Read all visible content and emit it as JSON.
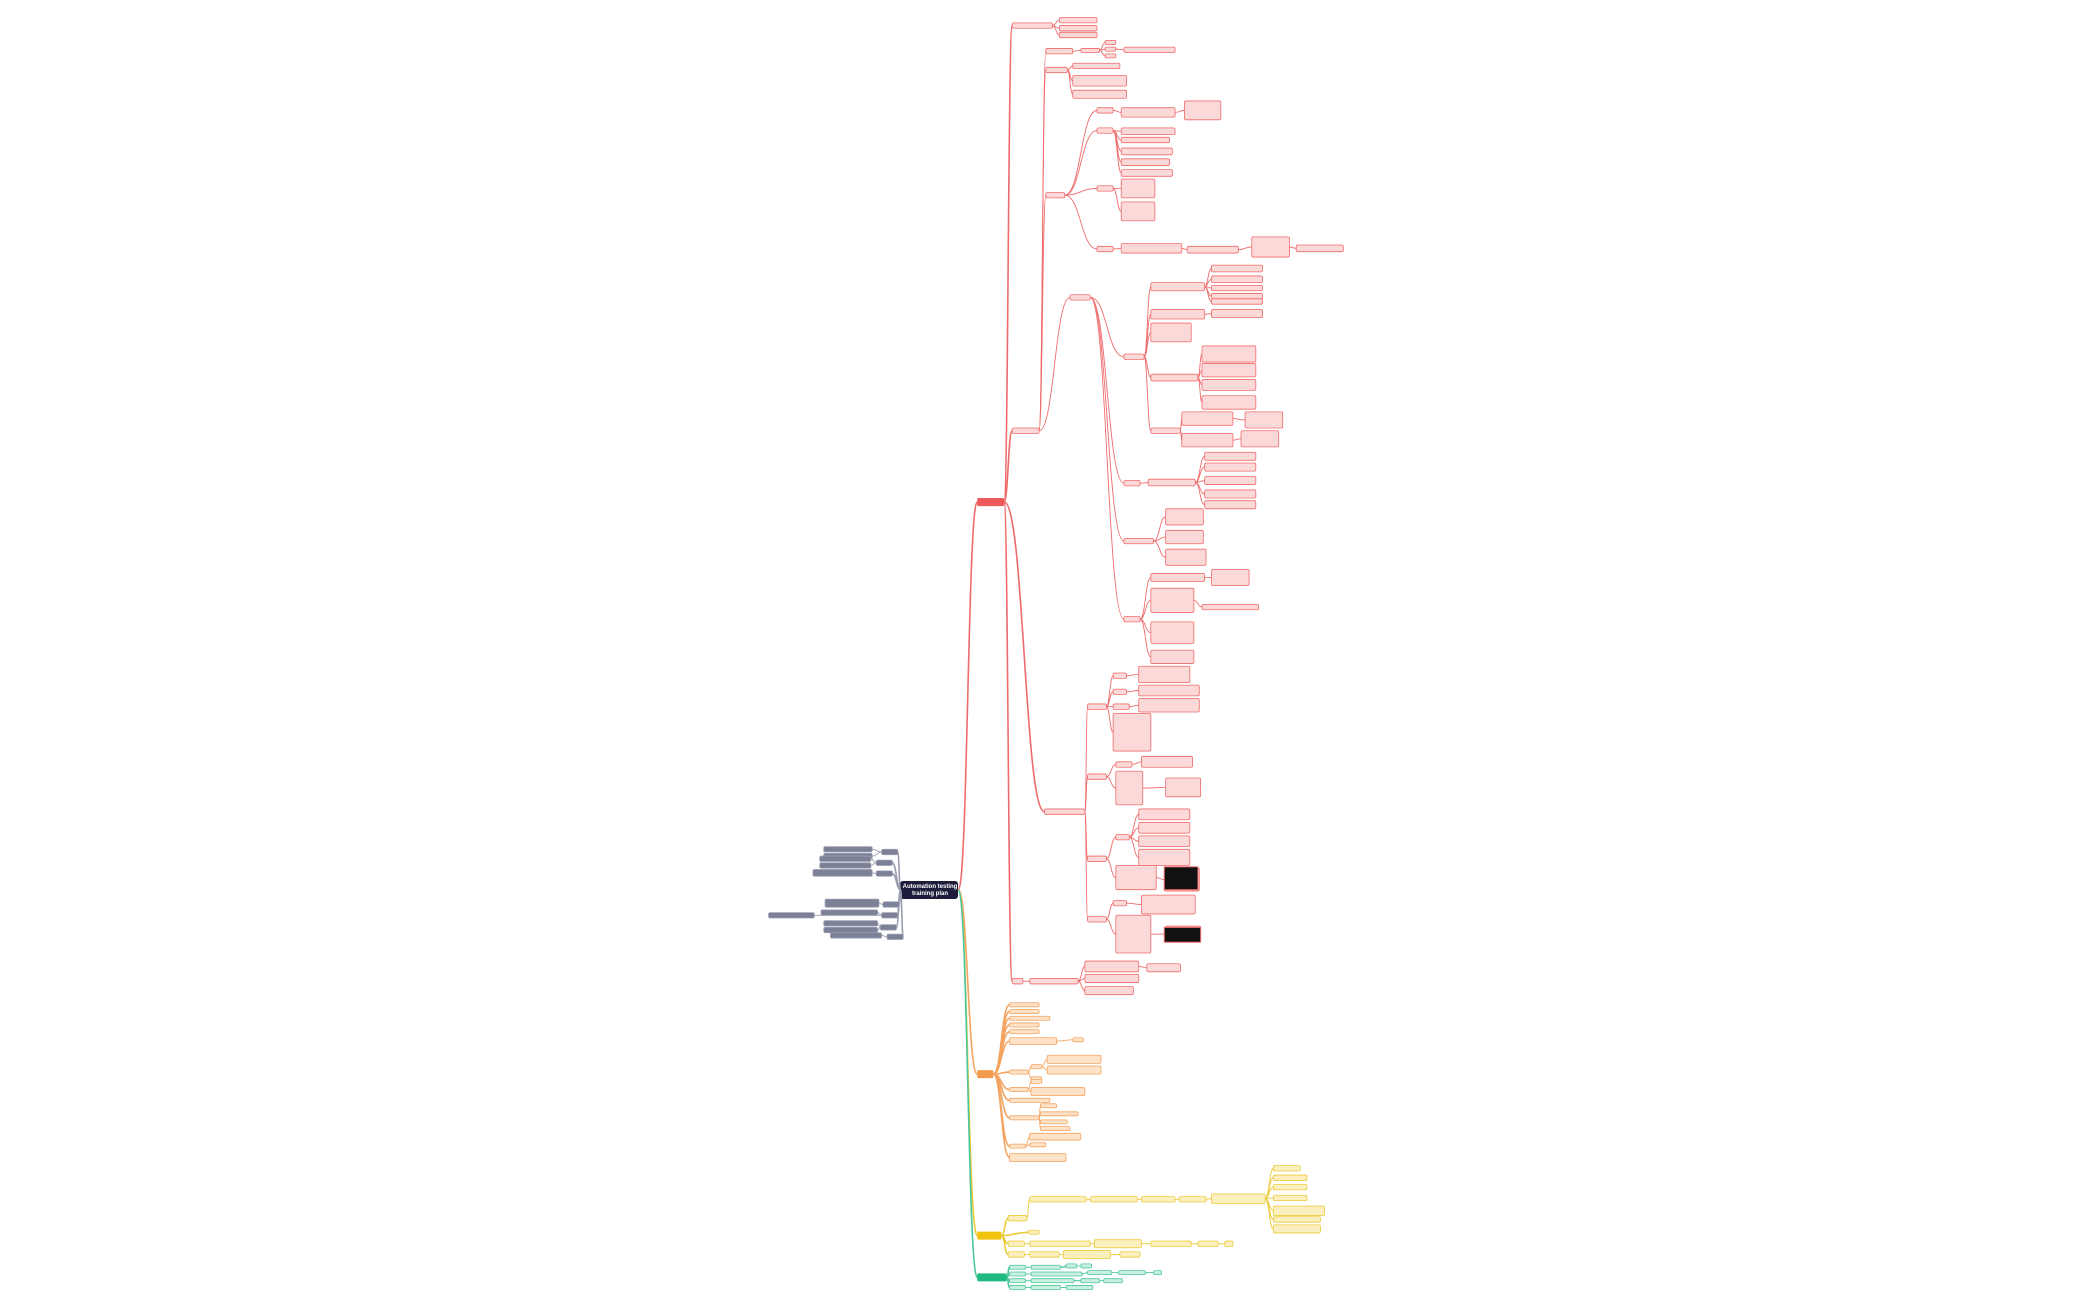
{
  "center": {
    "title": "Automation testing training plan"
  }
}
